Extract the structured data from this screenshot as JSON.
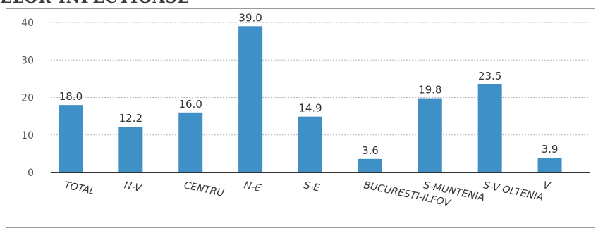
{
  "header": {
    "title_fragment": "ELOR INFECTIOASE"
  },
  "colors": {
    "bar": "#3e90c6",
    "axis": "#333333",
    "grid": "#999999"
  },
  "chart_data": {
    "type": "bar",
    "categories": [
      "TOTAL",
      "N-V",
      "CENTRU",
      "N-E",
      "S-E",
      "BUCURESTI-ILFOV",
      "S-MUNTENIA",
      "S-V OLTENIA",
      "V"
    ],
    "values": [
      18.0,
      12.2,
      16.0,
      39.0,
      14.9,
      3.6,
      19.8,
      23.5,
      3.9
    ],
    "value_labels": [
      "18.0",
      "12.2",
      "16.0",
      "39.0",
      "14.9",
      "3.6",
      "19.8",
      "23.5",
      "3.9"
    ],
    "y_ticks": [
      "0",
      "10",
      "20",
      "30",
      "40"
    ],
    "ylim": [
      0,
      40
    ],
    "grid": true,
    "title": "",
    "xlabel": "",
    "ylabel": ""
  }
}
